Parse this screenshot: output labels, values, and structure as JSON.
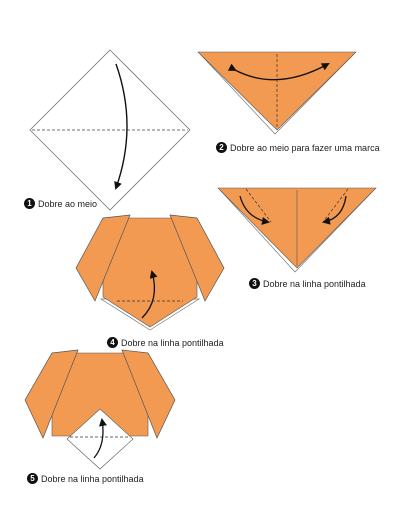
{
  "colors": {
    "paper_orange": "#F39A52",
    "paper_white": "#FFFFFF",
    "edge": "#6F6F6F",
    "fold_line": "#3A3A3A",
    "arrow": "#111111"
  },
  "steps": [
    {
      "number": "1",
      "caption": "Dobre ao meio"
    },
    {
      "number": "2",
      "caption": "Dobre ao meio para fazer uma marca"
    },
    {
      "number": "3",
      "caption": "Dobre na linha pontilhada"
    },
    {
      "number": "4",
      "caption": "Dobre na linha pontilhada"
    },
    {
      "number": "5",
      "caption": "Dobre na linha pontilhada"
    }
  ]
}
